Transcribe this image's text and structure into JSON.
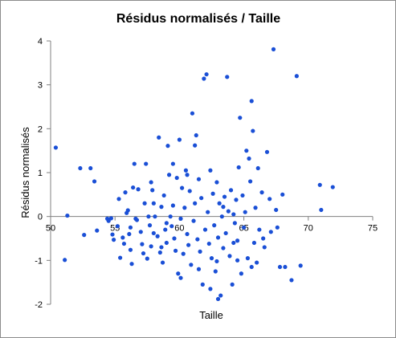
{
  "chart_data": {
    "type": "scatter",
    "title": "Résidus normalisés / Taille",
    "xlabel": "Taille",
    "ylabel": "Résidus normalisés",
    "xlim": [
      50,
      75
    ],
    "ylim": [
      -2,
      4
    ],
    "xticks": [
      "50",
      "55",
      "60",
      "65",
      "70",
      "75"
    ],
    "yticks": [
      "-2",
      "-1",
      "0",
      "1",
      "2",
      "3",
      "4"
    ],
    "grid": false,
    "legend": "none",
    "colors": {
      "points": "#1a4fd6",
      "axes": "#808080"
    },
    "points": [
      {
        "x": 50.4,
        "y": 1.57
      },
      {
        "x": 51.1,
        "y": -0.99
      },
      {
        "x": 51.3,
        "y": 0.02
      },
      {
        "x": 52.3,
        "y": 1.1
      },
      {
        "x": 52.6,
        "y": -0.42
      },
      {
        "x": 53.1,
        "y": 1.1
      },
      {
        "x": 53.4,
        "y": 0.8
      },
      {
        "x": 53.6,
        "y": -0.32
      },
      {
        "x": 54.4,
        "y": -0.05
      },
      {
        "x": 54.5,
        "y": -0.1
      },
      {
        "x": 54.7,
        "y": -0.04
      },
      {
        "x": 54.8,
        "y": -0.41
      },
      {
        "x": 54.9,
        "y": -0.53
      },
      {
        "x": 55.2,
        "y": -0.22
      },
      {
        "x": 55.3,
        "y": 0.4
      },
      {
        "x": 55.4,
        "y": -0.94
      },
      {
        "x": 55.6,
        "y": -0.48
      },
      {
        "x": 55.7,
        "y": -0.62
      },
      {
        "x": 55.8,
        "y": 0.55
      },
      {
        "x": 56.0,
        "y": 0.14
      },
      {
        "x": 56.1,
        "y": -0.4
      },
      {
        "x": 56.2,
        "y": -0.76
      },
      {
        "x": 56.3,
        "y": -1.08
      },
      {
        "x": 56.4,
        "y": 0.66
      },
      {
        "x": 56.5,
        "y": 1.2
      },
      {
        "x": 56.6,
        "y": -0.05
      },
      {
        "x": 56.7,
        "y": -0.08
      },
      {
        "x": 56.8,
        "y": 0.62
      },
      {
        "x": 57.0,
        "y": -0.35
      },
      {
        "x": 57.1,
        "y": -0.63
      },
      {
        "x": 57.2,
        "y": -0.84
      },
      {
        "x": 57.3,
        "y": 0.3
      },
      {
        "x": 57.4,
        "y": 1.2
      },
      {
        "x": 57.5,
        "y": -0.96
      },
      {
        "x": 57.6,
        "y": 0.0
      },
      {
        "x": 57.7,
        "y": -0.2
      },
      {
        "x": 57.8,
        "y": -0.68
      },
      {
        "x": 57.9,
        "y": 0.6
      },
      {
        "x": 58.0,
        "y": -0.38
      },
      {
        "x": 58.1,
        "y": 0.0
      },
      {
        "x": 58.3,
        "y": -0.45
      },
      {
        "x": 58.4,
        "y": 1.8
      },
      {
        "x": 58.5,
        "y": -0.82
      },
      {
        "x": 58.6,
        "y": 0.22
      },
      {
        "x": 58.7,
        "y": -1.05
      },
      {
        "x": 58.8,
        "y": 0.48
      },
      {
        "x": 58.9,
        "y": -0.3
      },
      {
        "x": 59.0,
        "y": -0.6
      },
      {
        "x": 59.1,
        "y": 1.61
      },
      {
        "x": 59.2,
        "y": 0.95
      },
      {
        "x": 59.3,
        "y": 0.0
      },
      {
        "x": 59.4,
        "y": -0.22
      },
      {
        "x": 59.5,
        "y": 1.2
      },
      {
        "x": 59.6,
        "y": -0.5
      },
      {
        "x": 59.7,
        "y": -0.78
      },
      {
        "x": 59.8,
        "y": 0.88
      },
      {
        "x": 59.9,
        "y": -1.3
      },
      {
        "x": 60.0,
        "y": 1.75
      },
      {
        "x": 60.1,
        "y": -0.05
      },
      {
        "x": 60.2,
        "y": 0.65
      },
      {
        "x": 60.3,
        "y": -0.85
      },
      {
        "x": 60.4,
        "y": 0.2
      },
      {
        "x": 60.5,
        "y": 1.05
      },
      {
        "x": 60.6,
        "y": -0.4
      },
      {
        "x": 60.7,
        "y": -0.65
      },
      {
        "x": 60.8,
        "y": 0.58
      },
      {
        "x": 60.9,
        "y": -1.1
      },
      {
        "x": 61.0,
        "y": 2.35
      },
      {
        "x": 61.1,
        "y": -0.1
      },
      {
        "x": 61.2,
        "y": 0.3
      },
      {
        "x": 61.3,
        "y": 1.85
      },
      {
        "x": 61.4,
        "y": -0.52
      },
      {
        "x": 61.5,
        "y": 0.85
      },
      {
        "x": 61.6,
        "y": -0.8
      },
      {
        "x": 61.7,
        "y": 0.42
      },
      {
        "x": 61.8,
        "y": -1.55
      },
      {
        "x": 61.9,
        "y": 3.14
      },
      {
        "x": 62.0,
        "y": -0.3
      },
      {
        "x": 62.1,
        "y": 3.24
      },
      {
        "x": 62.2,
        "y": 0.1
      },
      {
        "x": 62.3,
        "y": -0.62
      },
      {
        "x": 62.4,
        "y": 1.05
      },
      {
        "x": 62.5,
        "y": -0.95
      },
      {
        "x": 62.6,
        "y": 0.52
      },
      {
        "x": 62.7,
        "y": -0.2
      },
      {
        "x": 62.8,
        "y": -1.25
      },
      {
        "x": 62.9,
        "y": 0.78
      },
      {
        "x": 63.0,
        "y": -0.48
      },
      {
        "x": 63.1,
        "y": 0.3
      },
      {
        "x": 63.2,
        "y": -1.8
      },
      {
        "x": 63.3,
        "y": 0.0
      },
      {
        "x": 63.4,
        "y": -0.72
      },
      {
        "x": 63.5,
        "y": 0.45
      },
      {
        "x": 63.6,
        "y": -0.38
      },
      {
        "x": 63.7,
        "y": 3.18
      },
      {
        "x": 63.8,
        "y": 0.12
      },
      {
        "x": 63.9,
        "y": -0.9
      },
      {
        "x": 64.0,
        "y": 0.6
      },
      {
        "x": 64.1,
        "y": -1.55
      },
      {
        "x": 64.2,
        "y": 0.05
      },
      {
        "x": 64.3,
        "y": -0.15
      },
      {
        "x": 64.4,
        "y": 0.38
      },
      {
        "x": 64.5,
        "y": -0.55
      },
      {
        "x": 64.6,
        "y": 1.12
      },
      {
        "x": 64.7,
        "y": 2.25
      },
      {
        "x": 64.8,
        "y": -1.3
      },
      {
        "x": 64.9,
        "y": 0.48
      },
      {
        "x": 65.0,
        "y": -0.25
      },
      {
        "x": 65.1,
        "y": 0.1
      },
      {
        "x": 65.2,
        "y": 1.5
      },
      {
        "x": 65.3,
        "y": -0.95
      },
      {
        "x": 65.4,
        "y": 1.32
      },
      {
        "x": 65.5,
        "y": 0.8
      },
      {
        "x": 65.6,
        "y": 2.63
      },
      {
        "x": 65.7,
        "y": 1.95
      },
      {
        "x": 65.8,
        "y": -0.6
      },
      {
        "x": 65.9,
        "y": 0.2
      },
      {
        "x": 66.0,
        "y": -1.05
      },
      {
        "x": 66.1,
        "y": 1.1
      },
      {
        "x": 66.2,
        "y": -0.3
      },
      {
        "x": 66.4,
        "y": 0.55
      },
      {
        "x": 66.6,
        "y": -0.7
      },
      {
        "x": 66.8,
        "y": 1.47
      },
      {
        "x": 67.0,
        "y": 0.4
      },
      {
        "x": 67.1,
        "y": -0.35
      },
      {
        "x": 67.3,
        "y": 3.81
      },
      {
        "x": 67.5,
        "y": 0.15
      },
      {
        "x": 67.8,
        "y": -1.15
      },
      {
        "x": 68.0,
        "y": 0.5
      },
      {
        "x": 68.2,
        "y": -1.15
      },
      {
        "x": 68.7,
        "y": -1.45
      },
      {
        "x": 69.1,
        "y": 3.2
      },
      {
        "x": 69.4,
        "y": -1.12
      },
      {
        "x": 70.9,
        "y": 0.72
      },
      {
        "x": 71.0,
        "y": 0.15
      },
      {
        "x": 71.9,
        "y": 0.67
      },
      {
        "x": 58.6,
        "y": -0.7
      },
      {
        "x": 60.1,
        "y": -1.4
      },
      {
        "x": 61.2,
        "y": 1.62
      },
      {
        "x": 62.4,
        "y": -1.65
      },
      {
        "x": 63.0,
        "y": -1.88
      },
      {
        "x": 64.5,
        "y": -1.0
      },
      {
        "x": 66.5,
        "y": -0.5
      },
      {
        "x": 59.5,
        "y": 0.25
      },
      {
        "x": 57.8,
        "y": 0.78
      },
      {
        "x": 56.2,
        "y": -0.25
      },
      {
        "x": 55.9,
        "y": 0.08
      },
      {
        "x": 61.5,
        "y": -1.2
      },
      {
        "x": 62.9,
        "y": -1.02
      },
      {
        "x": 64.2,
        "y": -0.6
      },
      {
        "x": 65.6,
        "y": -1.15
      },
      {
        "x": 67.6,
        "y": -0.25
      },
      {
        "x": 60.6,
        "y": 0.95
      },
      {
        "x": 59.0,
        "y": -0.15
      },
      {
        "x": 58.0,
        "y": 0.3
      },
      {
        "x": 63.4,
        "y": 0.22
      }
    ]
  }
}
